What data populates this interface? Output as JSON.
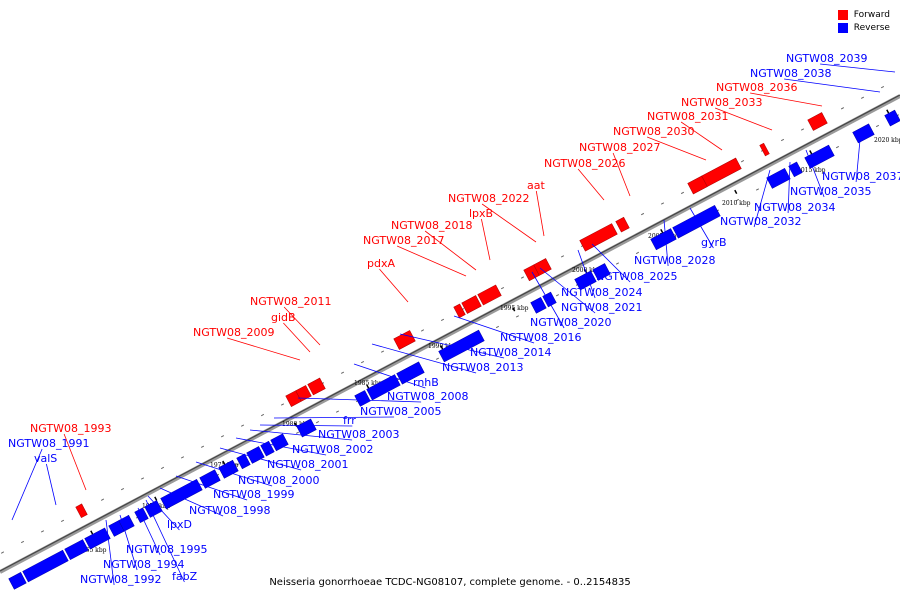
{
  "legend": {
    "forward_label": "Forward",
    "forward_color": "#ff0000",
    "reverse_label": "Reverse",
    "reverse_color": "#0000ff"
  },
  "caption": "Neisseria gonorrhoeae TCDC-NG08107, complete genome. - 0..2154835",
  "scale_ticks": [
    "1965 kbp",
    "1970 kbp",
    "1975 kbp",
    "1980 kbp",
    "1985 kbp",
    "1990 kbp",
    "1995 kbp",
    "2000 kbp",
    "2005 kbp",
    "2010 kbp",
    "2015 kbp",
    "2020 kbp"
  ],
  "genes": [
    {
      "label": "NGTW08_1991",
      "strand": "reverse"
    },
    {
      "label": "valS",
      "strand": "reverse"
    },
    {
      "label": "NGTW08_1993",
      "strand": "forward"
    },
    {
      "label": "NGTW08_1992",
      "strand": "reverse"
    },
    {
      "label": "NGTW08_1994",
      "strand": "reverse"
    },
    {
      "label": "NGTW08_1995",
      "strand": "reverse"
    },
    {
      "label": "fabZ",
      "strand": "reverse"
    },
    {
      "label": "lpxD",
      "strand": "reverse"
    },
    {
      "label": "NGTW08_1998",
      "strand": "reverse"
    },
    {
      "label": "NGTW08_1999",
      "strand": "reverse"
    },
    {
      "label": "NGTW08_2000",
      "strand": "reverse"
    },
    {
      "label": "NGTW08_2001",
      "strand": "reverse"
    },
    {
      "label": "NGTW08_2002",
      "strand": "reverse"
    },
    {
      "label": "NGTW08_2003",
      "strand": "reverse"
    },
    {
      "label": "frr",
      "strand": "reverse"
    },
    {
      "label": "NGTW08_2005",
      "strand": "reverse"
    },
    {
      "label": "NGTW08_2008",
      "strand": "reverse"
    },
    {
      "label": "rnhB",
      "strand": "reverse"
    },
    {
      "label": "NGTW08_2009",
      "strand": "forward"
    },
    {
      "label": "gidB",
      "strand": "forward"
    },
    {
      "label": "NGTW08_2011",
      "strand": "forward"
    },
    {
      "label": "NGTW08_2013",
      "strand": "reverse"
    },
    {
      "label": "NGTW08_2014",
      "strand": "reverse"
    },
    {
      "label": "NGTW08_2016",
      "strand": "reverse"
    },
    {
      "label": "pdxA",
      "strand": "forward"
    },
    {
      "label": "NGTW08_2017",
      "strand": "forward"
    },
    {
      "label": "NGTW08_2018",
      "strand": "forward"
    },
    {
      "label": "lpxB",
      "strand": "forward"
    },
    {
      "label": "NGTW08_2020",
      "strand": "reverse"
    },
    {
      "label": "NGTW08_2021",
      "strand": "reverse"
    },
    {
      "label": "NGTW08_2022",
      "strand": "forward"
    },
    {
      "label": "aat",
      "strand": "forward"
    },
    {
      "label": "NGTW08_2024",
      "strand": "reverse"
    },
    {
      "label": "NGTW08_2025",
      "strand": "reverse"
    },
    {
      "label": "NGTW08_2026",
      "strand": "forward"
    },
    {
      "label": "NGTW08_2027",
      "strand": "forward"
    },
    {
      "label": "NGTW08_2028",
      "strand": "reverse"
    },
    {
      "label": "gyrB",
      "strand": "reverse"
    },
    {
      "label": "NGTW08_2030",
      "strand": "forward"
    },
    {
      "label": "NGTW08_2031",
      "strand": "forward"
    },
    {
      "label": "NGTW08_2032",
      "strand": "reverse"
    },
    {
      "label": "NGTW08_2033",
      "strand": "forward"
    },
    {
      "label": "NGTW08_2034",
      "strand": "reverse"
    },
    {
      "label": "NGTW08_2035",
      "strand": "reverse"
    },
    {
      "label": "NGTW08_2036",
      "strand": "forward"
    },
    {
      "label": "NGTW08_2037",
      "strand": "reverse"
    },
    {
      "label": "NGTW08_2038",
      "strand": "reverse"
    },
    {
      "label": "NGTW08_2039",
      "strand": "reverse"
    }
  ]
}
